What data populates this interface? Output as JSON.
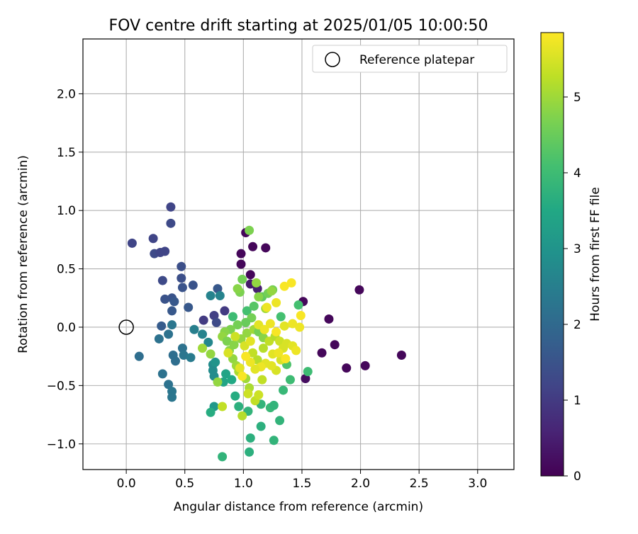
{
  "chart_data": {
    "type": "scatter",
    "title": "FOV centre drift starting at 2025/01/05 10:00:50",
    "xlabel": "Angular distance from reference (arcmin)",
    "ylabel": "Rotation from reference (arcmin)",
    "xlim": [
      -0.37,
      3.31
    ],
    "ylim": [
      -1.22,
      2.47
    ],
    "xticks": [
      "0.0",
      "0.5",
      "1.0",
      "1.5",
      "2.0",
      "2.5",
      "3.0"
    ],
    "yticks": [
      "−1.0",
      "−0.5",
      "0.0",
      "0.5",
      "1.0",
      "1.5",
      "2.0"
    ],
    "grid": true,
    "legend": {
      "placement": "top-right",
      "entries": [
        "Reference platepar"
      ]
    },
    "reference": {
      "name": "Reference platepar",
      "x": 0.0,
      "y": 0.0
    },
    "colorbar": {
      "label": "Hours from first FF file",
      "range": [
        0,
        5.85
      ],
      "ticks": [
        "0",
        "1",
        "2",
        "3",
        "4",
        "5"
      ],
      "colormap": "viridis"
    },
    "points": [
      [
        0.98,
        0.63,
        0.1
      ],
      [
        1.02,
        0.81,
        0.1
      ],
      [
        1.08,
        0.69,
        0.1
      ],
      [
        1.19,
        0.68,
        0.1
      ],
      [
        1.06,
        0.45,
        0.1
      ],
      [
        0.98,
        0.54,
        0.1
      ],
      [
        1.99,
        0.32,
        0.1
      ],
      [
        1.51,
        0.22,
        0.1
      ],
      [
        1.73,
        0.07,
        0.1
      ],
      [
        1.67,
        -0.22,
        0.1
      ],
      [
        1.78,
        -0.15,
        0.1
      ],
      [
        1.88,
        -0.35,
        0.1
      ],
      [
        2.04,
        -0.33,
        0.1
      ],
      [
        2.35,
        -0.24,
        0.1
      ],
      [
        1.53,
        -0.44,
        0.2
      ],
      [
        1.12,
        0.33,
        0.5
      ],
      [
        1.06,
        0.37,
        0.4
      ],
      [
        0.05,
        0.72,
        1.2
      ],
      [
        0.23,
        0.76,
        1.2
      ],
      [
        0.24,
        0.63,
        1.3
      ],
      [
        0.29,
        0.64,
        1.2
      ],
      [
        0.33,
        0.65,
        1.2
      ],
      [
        0.38,
        1.03,
        1.2
      ],
      [
        0.38,
        0.89,
        1.3
      ],
      [
        0.31,
        0.4,
        1.3
      ],
      [
        0.47,
        0.52,
        1.4
      ],
      [
        0.47,
        0.42,
        1.4
      ],
      [
        0.57,
        0.36,
        1.5
      ],
      [
        0.48,
        0.34,
        1.5
      ],
      [
        0.39,
        0.25,
        1.5
      ],
      [
        0.33,
        0.24,
        1.5
      ],
      [
        0.41,
        0.22,
        1.6
      ],
      [
        0.53,
        0.17,
        1.6
      ],
      [
        0.39,
        0.14,
        1.6
      ],
      [
        0.3,
        0.01,
        1.7
      ],
      [
        0.66,
        0.06,
        1.0
      ],
      [
        0.75,
        0.1,
        1.1
      ],
      [
        0.84,
        0.14,
        1.0
      ],
      [
        0.77,
        0.04,
        1.3
      ],
      [
        0.78,
        0.33,
        1.6
      ],
      [
        0.11,
        -0.25,
        2.1
      ],
      [
        0.28,
        -0.1,
        2.2
      ],
      [
        0.36,
        -0.06,
        2.2
      ],
      [
        0.39,
        0.02,
        2.3
      ],
      [
        0.31,
        -0.4,
        2.2
      ],
      [
        0.36,
        -0.49,
        2.2
      ],
      [
        0.39,
        -0.55,
        2.3
      ],
      [
        0.39,
        -0.6,
        2.3
      ],
      [
        0.4,
        -0.24,
        2.1
      ],
      [
        0.42,
        -0.29,
        2.1
      ],
      [
        0.48,
        -0.18,
        2.2
      ],
      [
        0.49,
        -0.24,
        2.3
      ],
      [
        0.55,
        -0.26,
        2.4
      ],
      [
        0.58,
        -0.02,
        2.5
      ],
      [
        0.72,
        0.27,
        2.6
      ],
      [
        0.8,
        0.27,
        2.6
      ],
      [
        0.65,
        -0.06,
        2.6
      ],
      [
        0.7,
        -0.13,
        2.7
      ],
      [
        0.74,
        -0.32,
        2.8
      ],
      [
        0.74,
        -0.37,
        2.8
      ],
      [
        0.75,
        -0.42,
        2.8
      ],
      [
        0.75,
        -0.68,
        3.1
      ],
      [
        0.72,
        -0.73,
        3.6
      ],
      [
        0.76,
        -0.3,
        3.0
      ],
      [
        0.82,
        -1.11,
        3.8
      ],
      [
        0.83,
        -0.47,
        3.4
      ],
      [
        0.85,
        -0.4,
        3.4
      ],
      [
        0.9,
        -0.45,
        3.5
      ],
      [
        0.93,
        -0.59,
        3.6
      ],
      [
        0.96,
        -0.68,
        3.7
      ],
      [
        1.05,
        -1.07,
        3.7
      ],
      [
        1.06,
        -0.95,
        3.7
      ],
      [
        1.04,
        -0.72,
        3.8
      ],
      [
        1.15,
        -0.66,
        3.8
      ],
      [
        1.15,
        -0.85,
        3.7
      ],
      [
        1.23,
        -0.69,
        3.9
      ],
      [
        1.26,
        -0.97,
        3.8
      ],
      [
        1.26,
        -0.67,
        3.8
      ],
      [
        1.31,
        -0.8,
        3.8
      ],
      [
        1.34,
        -0.54,
        3.9
      ],
      [
        1.4,
        -0.45,
        4.0
      ],
      [
        1.55,
        -0.38,
        4.0
      ],
      [
        1.47,
        0.19,
        4.1
      ],
      [
        1.32,
        0.09,
        4.1
      ],
      [
        1.37,
        -0.32,
        4.2
      ],
      [
        0.91,
        0.09,
        4.0
      ],
      [
        1.03,
        0.14,
        4.1
      ],
      [
        1.09,
        0.18,
        4.3
      ],
      [
        1.16,
        0.26,
        4.4
      ],
      [
        1.21,
        0.29,
        4.6
      ],
      [
        1.25,
        0.32,
        4.6
      ],
      [
        0.99,
        0.41,
        4.6
      ],
      [
        0.97,
        0.3,
        4.7
      ],
      [
        0.95,
        0.33,
        4.8
      ],
      [
        1.05,
        0.83,
        4.7
      ],
      [
        1.11,
        0.38,
        4.9
      ],
      [
        1.13,
        0.26,
        4.8
      ],
      [
        1.24,
        0.31,
        4.9
      ],
      [
        1.19,
        0.16,
        5.0
      ],
      [
        1.07,
        0.08,
        4.6
      ],
      [
        1.02,
        0.04,
        4.5
      ],
      [
        0.95,
        0.02,
        4.6
      ],
      [
        0.89,
        -0.02,
        4.7
      ],
      [
        0.84,
        -0.04,
        4.8
      ],
      [
        0.82,
        -0.08,
        4.9
      ],
      [
        0.86,
        -0.12,
        4.7
      ],
      [
        0.92,
        -0.15,
        4.8
      ],
      [
        0.98,
        -0.1,
        4.9
      ],
      [
        1.03,
        -0.05,
        4.9
      ],
      [
        1.09,
        -0.02,
        5.0
      ],
      [
        1.13,
        -0.04,
        4.6
      ],
      [
        1.17,
        -0.09,
        4.8
      ],
      [
        0.65,
        -0.18,
        5.0
      ],
      [
        0.72,
        -0.23,
        4.9
      ],
      [
        0.78,
        -0.47,
        4.9
      ],
      [
        0.82,
        -0.68,
        5.3
      ],
      [
        0.88,
        -0.2,
        4.8
      ],
      [
        0.91,
        -0.27,
        4.9
      ],
      [
        0.94,
        -0.33,
        5.0
      ],
      [
        0.96,
        -0.38,
        5.1
      ],
      [
        1.02,
        -0.44,
        5.0
      ],
      [
        1.05,
        -0.52,
        5.1
      ],
      [
        0.99,
        -0.76,
        5.2
      ],
      [
        1.04,
        -0.57,
        5.4
      ],
      [
        1.1,
        -0.63,
        5.3
      ],
      [
        1.13,
        -0.58,
        5.4
      ],
      [
        1.16,
        -0.45,
        5.3
      ],
      [
        1.12,
        -0.28,
        5.2
      ],
      [
        1.08,
        -0.22,
        5.3
      ],
      [
        1.17,
        -0.18,
        5.2
      ],
      [
        1.22,
        -0.12,
        5.3
      ],
      [
        1.27,
        -0.08,
        5.2
      ],
      [
        1.31,
        -0.12,
        5.4
      ],
      [
        1.34,
        -0.18,
        5.5
      ],
      [
        1.37,
        -0.14,
        5.5
      ],
      [
        1.42,
        -0.16,
        5.6
      ],
      [
        1.45,
        -0.2,
        5.7
      ],
      [
        1.32,
        -0.28,
        5.5
      ],
      [
        1.28,
        -0.37,
        5.5
      ],
      [
        1.24,
        -0.33,
        5.6
      ],
      [
        1.19,
        -0.31,
        5.6
      ],
      [
        1.15,
        -0.34,
        5.7
      ],
      [
        1.1,
        -0.36,
        5.6
      ],
      [
        1.06,
        -0.3,
        5.7
      ],
      [
        1.02,
        -0.25,
        5.8
      ],
      [
        0.97,
        -0.35,
        5.6
      ],
      [
        0.99,
        -0.42,
        5.8
      ],
      [
        1.13,
        0.02,
        5.6
      ],
      [
        1.18,
        -0.02,
        5.7
      ],
      [
        1.23,
        0.03,
        5.7
      ],
      [
        1.28,
        -0.04,
        5.8
      ],
      [
        1.35,
        0.01,
        5.6
      ],
      [
        1.42,
        0.03,
        5.7
      ],
      [
        1.48,
        0.0,
        5.7
      ],
      [
        1.49,
        0.1,
        5.8
      ],
      [
        1.41,
        0.38,
        5.8
      ],
      [
        1.35,
        0.35,
        5.8
      ],
      [
        1.28,
        0.21,
        5.7
      ],
      [
        1.2,
        0.17,
        5.7
      ],
      [
        1.25,
        -0.23,
        5.6
      ],
      [
        1.3,
        -0.22,
        5.7
      ],
      [
        1.36,
        -0.27,
        5.8
      ],
      [
        0.93,
        -0.08,
        5.4
      ],
      [
        0.87,
        -0.22,
        5.5
      ],
      [
        1.01,
        -0.16,
        5.5
      ],
      [
        1.06,
        -0.12,
        5.6
      ]
    ]
  }
}
